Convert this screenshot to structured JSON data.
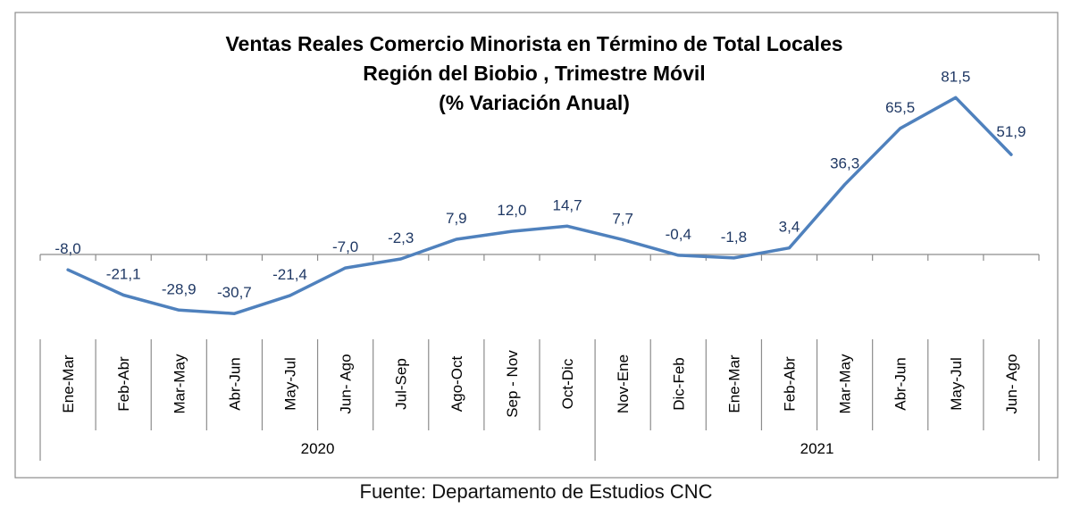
{
  "chart_data": {
    "type": "line",
    "title_lines": [
      "Ventas Reales Comercio Minorista  en Término de Total Locales",
      "Región del Biobio , Trimestre Móvil",
      "(% Variación Anual)"
    ],
    "categories": [
      "Ene-Mar",
      "Feb-Abr",
      "Mar-May",
      "Abr-Jun",
      "May-Jul",
      "Jun- Ago",
      "Jul-Sep",
      "Ago-Oct",
      "Sep - Nov",
      "Oct-Dic",
      "Nov-Ene",
      "Dic-Feb",
      "Ene-Mar",
      "Feb-Abr",
      "Mar-May",
      "Abr-Jun",
      "May-Jul",
      "Jun- Ago"
    ],
    "values": [
      -8.0,
      -21.1,
      -28.9,
      -30.7,
      -21.4,
      -7.0,
      -2.3,
      7.9,
      12.0,
      14.7,
      7.7,
      -0.4,
      -1.8,
      3.4,
      36.3,
      65.5,
      81.5,
      51.9
    ],
    "data_labels": [
      "-8,0",
      "-21,1",
      "-28,9",
      "-30,7",
      "-21,4",
      "-7,0",
      "-2,3",
      "7,9",
      "12,0",
      "14,7",
      "7,7",
      "-0,4",
      "-1,8",
      "3,4",
      "36,3",
      "65,5",
      "81,5",
      "51,9"
    ],
    "groups": [
      {
        "label": "2020",
        "count": 10
      },
      {
        "label": "2021",
        "count": 8
      }
    ],
    "line_color": "#4F81BD",
    "label_color": "#1F3864",
    "grid": false,
    "legend": "none"
  },
  "source": "Fuente: Departamento de Estudios CNC"
}
